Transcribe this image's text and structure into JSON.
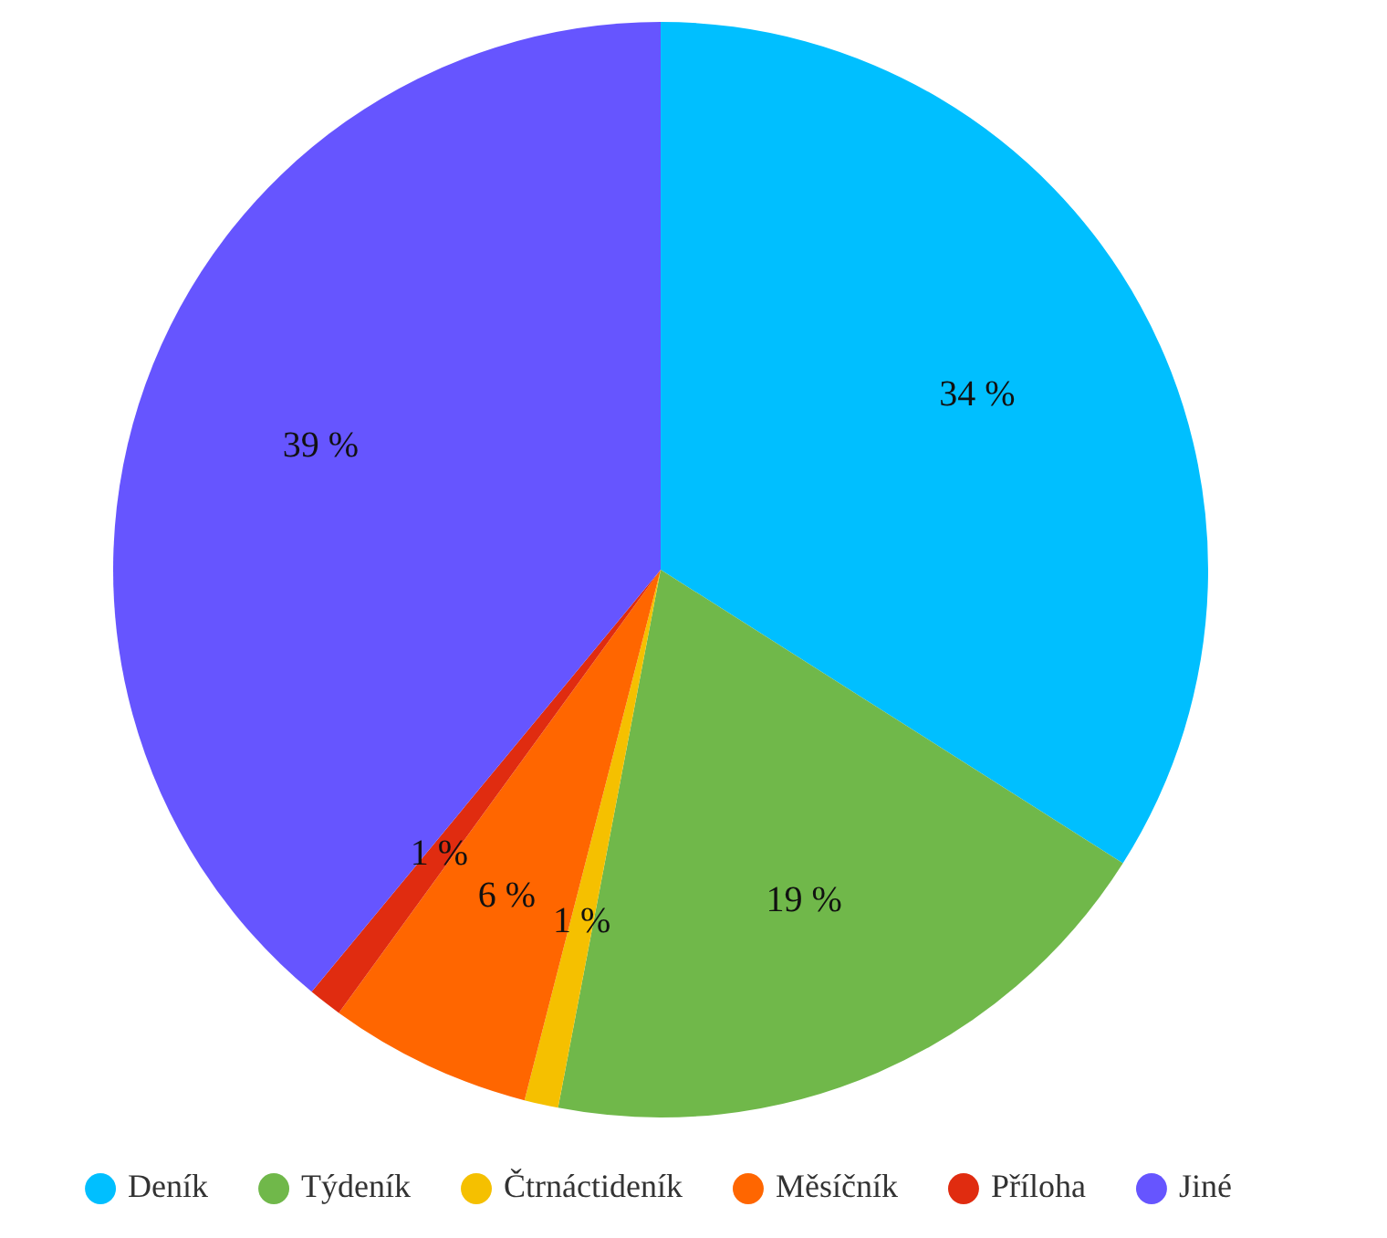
{
  "chart_data": {
    "type": "pie",
    "categories": [
      "Deník",
      "Týdeník",
      "Čtrnáctideník",
      "Měsíčník",
      "Příloha",
      "Jiné"
    ],
    "values": [
      34,
      19,
      1,
      6,
      1,
      39
    ],
    "colors": [
      "#00bfff",
      "#70b84a",
      "#f5c000",
      "#ff6600",
      "#e02c10",
      "#6655ff"
    ],
    "value_labels": [
      "34 %",
      "19 %",
      "1 %",
      "6 %",
      "1 %",
      "39 %"
    ],
    "legend": "bottom"
  }
}
